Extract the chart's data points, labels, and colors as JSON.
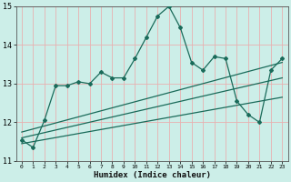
{
  "title": "",
  "xlabel": "Humidex (Indice chaleur)",
  "bg_color": "#cceee8",
  "grid_color": "#e8b0b0",
  "line_color": "#1a6b5a",
  "xlim": [
    -0.5,
    23.5
  ],
  "ylim": [
    11,
    15
  ],
  "yticks": [
    11,
    12,
    13,
    14,
    15
  ],
  "xticks": [
    0,
    1,
    2,
    3,
    4,
    5,
    6,
    7,
    8,
    9,
    10,
    11,
    12,
    13,
    14,
    15,
    16,
    17,
    18,
    19,
    20,
    21,
    22,
    23
  ],
  "main_x": [
    0,
    1,
    2,
    3,
    4,
    5,
    6,
    7,
    8,
    9,
    10,
    11,
    12,
    13,
    14,
    15,
    16,
    17,
    18,
    19,
    20,
    21,
    22,
    23
  ],
  "main_y": [
    11.55,
    11.35,
    12.05,
    12.95,
    12.95,
    13.05,
    13.0,
    13.3,
    13.15,
    13.15,
    13.65,
    14.2,
    14.75,
    15.0,
    14.45,
    13.55,
    13.35,
    13.7,
    13.65,
    12.55,
    12.2,
    12.0,
    13.35,
    13.65
  ],
  "line1_x": [
    0,
    23
  ],
  "line1_y": [
    11.75,
    13.55
  ],
  "line2_x": [
    0,
    23
  ],
  "line2_y": [
    11.6,
    13.15
  ],
  "line3_x": [
    0,
    23
  ],
  "line3_y": [
    11.45,
    12.65
  ]
}
